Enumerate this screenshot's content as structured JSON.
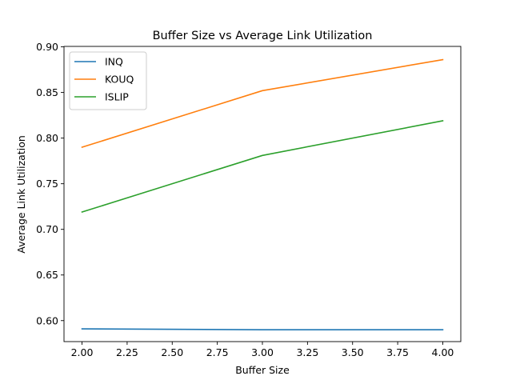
{
  "chart_data": {
    "type": "line",
    "title": "Buffer Size vs Average Link Utilization",
    "xlabel": "Buffer Size",
    "ylabel": "Average Link Utilization",
    "x": [
      2.0,
      3.0,
      4.0
    ],
    "xlim": [
      1.9,
      4.1
    ],
    "ylim": [
      0.577,
      0.9005
    ],
    "xticks": [
      2.0,
      2.25,
      2.5,
      2.75,
      3.0,
      3.25,
      3.5,
      3.75,
      4.0
    ],
    "xtick_labels": [
      "2.00",
      "2.25",
      "2.50",
      "2.75",
      "3.00",
      "3.25",
      "3.50",
      "3.75",
      "4.00"
    ],
    "yticks": [
      0.6,
      0.65,
      0.7,
      0.75,
      0.8,
      0.85,
      0.9
    ],
    "ytick_labels": [
      "0.60",
      "0.65",
      "0.70",
      "0.75",
      "0.80",
      "0.85",
      "0.90"
    ],
    "grid": false,
    "legend_position": "top-left",
    "series": [
      {
        "name": "INQ",
        "color": "#1f77b4",
        "values": [
          0.591,
          0.59,
          0.59
        ]
      },
      {
        "name": "KOUQ",
        "color": "#ff7f0e",
        "values": [
          0.79,
          0.852,
          0.886
        ]
      },
      {
        "name": "ISLIP",
        "color": "#2ca02c",
        "values": [
          0.719,
          0.781,
          0.819
        ]
      }
    ]
  }
}
